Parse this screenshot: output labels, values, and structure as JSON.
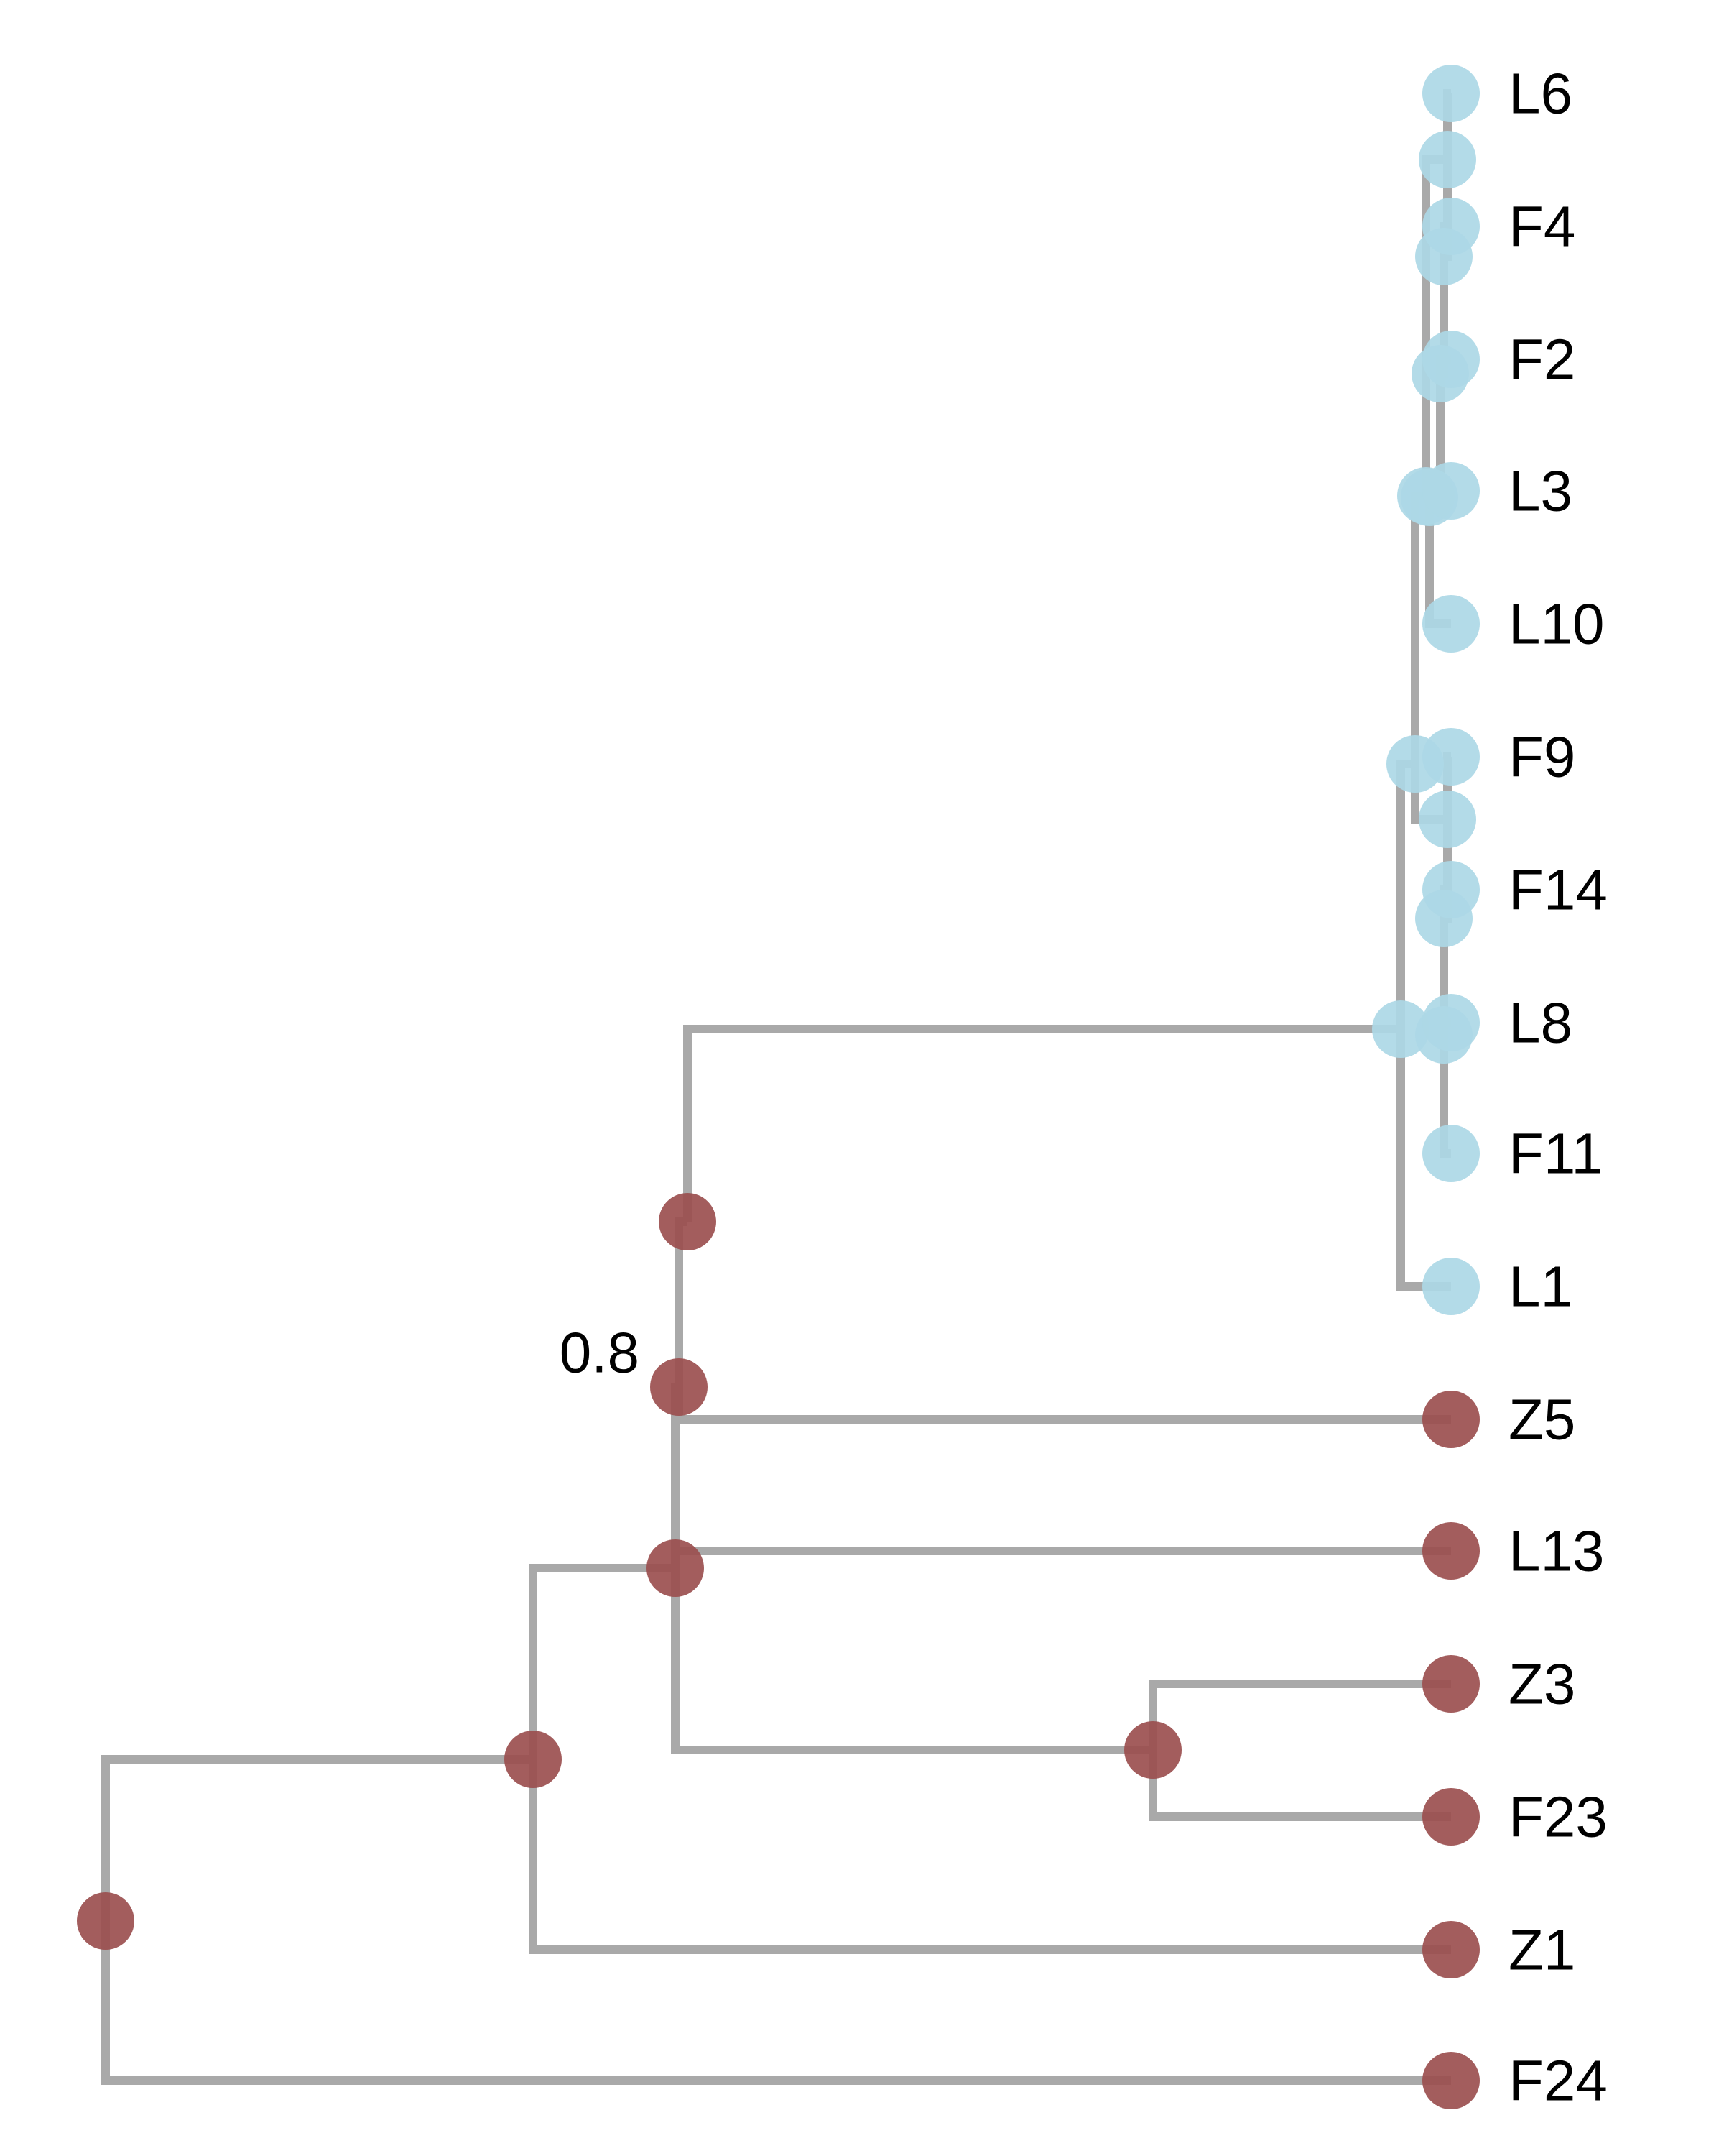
{
  "colors": {
    "branch": "#a9a9a9",
    "clade_a": "#add8e6",
    "clade_b": "#9b4f4f"
  },
  "tree": {
    "tips": [
      {
        "id": "L6",
        "label": "L6",
        "group": "clade_a"
      },
      {
        "id": "F4",
        "label": "F4",
        "group": "clade_a"
      },
      {
        "id": "F2",
        "label": "F2",
        "group": "clade_a"
      },
      {
        "id": "L3",
        "label": "L3",
        "group": "clade_a"
      },
      {
        "id": "L10",
        "label": "L10",
        "group": "clade_a"
      },
      {
        "id": "F9",
        "label": "F9",
        "group": "clade_a"
      },
      {
        "id": "F14",
        "label": "F14",
        "group": "clade_a"
      },
      {
        "id": "L8",
        "label": "L8",
        "group": "clade_a"
      },
      {
        "id": "F11",
        "label": "F11",
        "group": "clade_a"
      },
      {
        "id": "L1",
        "label": "L1",
        "group": "clade_a"
      },
      {
        "id": "Z5",
        "label": "Z5",
        "group": "clade_b"
      },
      {
        "id": "L13",
        "label": "L13",
        "group": "clade_b"
      },
      {
        "id": "Z3",
        "label": "Z3",
        "group": "clade_b"
      },
      {
        "id": "F23",
        "label": "F23",
        "group": "clade_b"
      },
      {
        "id": "Z1",
        "label": "Z1",
        "group": "clade_b"
      },
      {
        "id": "F24",
        "label": "F24",
        "group": "clade_b"
      }
    ],
    "support_labels": [
      {
        "node": "n_z5",
        "label": "0.8"
      }
    ]
  }
}
